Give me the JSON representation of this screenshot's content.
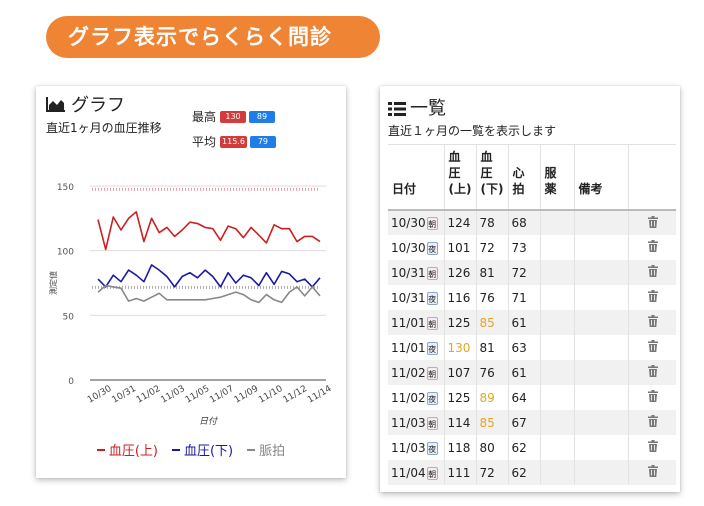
{
  "banner": {
    "text": "グラフ表示でらくらく問診"
  },
  "graph_card": {
    "title": "グラフ",
    "subtitle": "直近1ヶ月の血圧推移",
    "max_label": "最高",
    "max_systolic": "130",
    "max_diastolic": "89",
    "avg_label": "平均",
    "avg_systolic": "115.6",
    "avg_diastolic": "79",
    "legend": {
      "systolic": "血圧(上)",
      "diastolic": "血圧(下)",
      "pulse": "脈拍"
    },
    "colors": {
      "systolic": "#cc1f1f",
      "diastolic": "#1a1aa8",
      "pulse": "#888888",
      "badge_red": "#d43b3b",
      "badge_blue": "#1e7de6"
    }
  },
  "chart_data": {
    "type": "line",
    "title": "",
    "xlabel": "日付",
    "ylabel": "測定値",
    "ylim": [
      0,
      150
    ],
    "yticks": [
      0,
      50,
      100,
      150
    ],
    "xtick_labels": [
      "10/30",
      "10/31",
      "11/02",
      "11/03",
      "11/05",
      "11/07",
      "11/09",
      "11/10",
      "11/12",
      "11/14"
    ],
    "grid": true,
    "legend_position": "bottom",
    "series": [
      {
        "name": "血圧(上)",
        "values": [
          124,
          101,
          126,
          116,
          125,
          130,
          107,
          125,
          114,
          118,
          111,
          116,
          122,
          121,
          118,
          117,
          108,
          119,
          117,
          110,
          118,
          112,
          106,
          120,
          117,
          117,
          107,
          111,
          111,
          107
        ]
      },
      {
        "name": "血圧(下)",
        "values": [
          78,
          72,
          81,
          76,
          85,
          81,
          76,
          89,
          85,
          80,
          72,
          80,
          83,
          79,
          85,
          80,
          72,
          83,
          75,
          81,
          79,
          73,
          83,
          74,
          84,
          82,
          76,
          78,
          72,
          79
        ]
      },
      {
        "name": "脈拍",
        "values": [
          68,
          73,
          72,
          71,
          61,
          63,
          61,
          64,
          67,
          62,
          62,
          62,
          62,
          62,
          62,
          63,
          64,
          66,
          68,
          66,
          62,
          60,
          66,
          62,
          60,
          68,
          72,
          65,
          72,
          65
        ]
      }
    ]
  },
  "list_card": {
    "title": "一覧",
    "subtitle": "直近１ヶ月の一覧を表示します",
    "headers": {
      "date": "日付",
      "sys_lines": [
        "血",
        "圧",
        "(上)"
      ],
      "dia_lines": [
        "血",
        "圧",
        "(下)"
      ],
      "pulse_lines": [
        "心",
        "拍"
      ],
      "med_lines": [
        "服",
        "薬"
      ],
      "notes": "備考"
    },
    "rows": [
      {
        "date": "10/30",
        "tod": "朝",
        "sys": "124",
        "dia": "78",
        "pulse": "68",
        "dia_warn": false,
        "sys_warn": false
      },
      {
        "date": "10/30",
        "tod": "夜",
        "sys": "101",
        "dia": "72",
        "pulse": "73",
        "dia_warn": false,
        "sys_warn": false
      },
      {
        "date": "10/31",
        "tod": "朝",
        "sys": "126",
        "dia": "81",
        "pulse": "72",
        "dia_warn": false,
        "sys_warn": false
      },
      {
        "date": "10/31",
        "tod": "夜",
        "sys": "116",
        "dia": "76",
        "pulse": "71",
        "dia_warn": false,
        "sys_warn": false
      },
      {
        "date": "11/01",
        "tod": "朝",
        "sys": "125",
        "dia": "85",
        "pulse": "61",
        "dia_warn": true,
        "sys_warn": false
      },
      {
        "date": "11/01",
        "tod": "夜",
        "sys": "130",
        "dia": "81",
        "pulse": "63",
        "dia_warn": false,
        "sys_warn": true
      },
      {
        "date": "11/02",
        "tod": "朝",
        "sys": "107",
        "dia": "76",
        "pulse": "61",
        "dia_warn": false,
        "sys_warn": false
      },
      {
        "date": "11/02",
        "tod": "夜",
        "sys": "125",
        "dia": "89",
        "pulse": "64",
        "dia_warn": true,
        "sys_warn": false
      },
      {
        "date": "11/03",
        "tod": "朝",
        "sys": "114",
        "dia": "85",
        "pulse": "67",
        "dia_warn": true,
        "sys_warn": false
      },
      {
        "date": "11/03",
        "tod": "夜",
        "sys": "118",
        "dia": "80",
        "pulse": "62",
        "dia_warn": false,
        "sys_warn": false
      },
      {
        "date": "11/04",
        "tod": "朝",
        "sys": "111",
        "dia": "72",
        "pulse": "62",
        "dia_warn": false,
        "sys_warn": false
      }
    ],
    "warn_color": "#e8a326",
    "trash_icon": "trash-icon"
  }
}
